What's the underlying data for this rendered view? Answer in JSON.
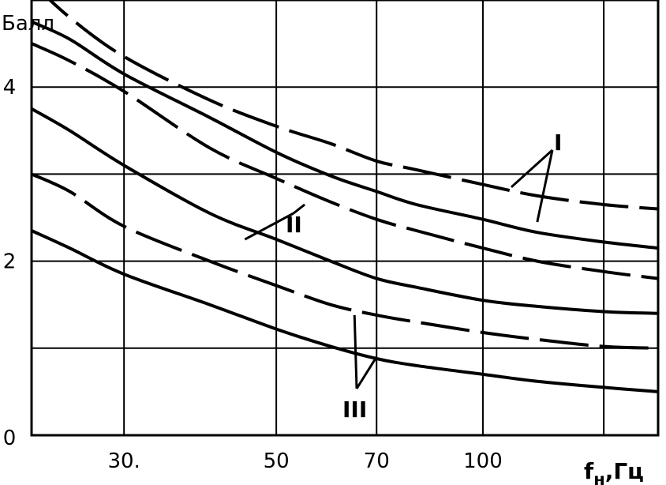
{
  "chart_data": {
    "type": "line",
    "title": "",
    "ylabel": "Балл",
    "xlabel": "f_н, Гц",
    "xlabel_main": "f",
    "xlabel_sub": "н",
    "xlabel_unit": ",Гц",
    "x_scale": "log",
    "xlim": [
      22,
      180
    ],
    "ylim": [
      0,
      5
    ],
    "grid": true,
    "x_ticks": [
      {
        "value": 30,
        "label": "30."
      },
      {
        "value": 50,
        "label": "50"
      },
      {
        "value": 70,
        "label": "70"
      },
      {
        "value": 100,
        "label": "100"
      }
    ],
    "y_ticks": [
      {
        "value": 0,
        "label": "0"
      },
      {
        "value": 2,
        "label": "2"
      },
      {
        "value": 4,
        "label": "4"
      }
    ],
    "x_grid": [
      30,
      50,
      70,
      100,
      150
    ],
    "y_grid": [
      1,
      2,
      3,
      4,
      5
    ],
    "series": [
      {
        "group": "I",
        "style": "dashed",
        "x": [
          22,
          25,
          30,
          40,
          50,
          60,
          70,
          80,
          100,
          120,
          150,
          180
        ],
        "y": [
          5.2,
          4.8,
          4.35,
          3.85,
          3.55,
          3.35,
          3.15,
          3.05,
          2.88,
          2.75,
          2.65,
          2.6
        ]
      },
      {
        "group": "I",
        "style": "solid",
        "x": [
          22,
          25,
          30,
          40,
          50,
          60,
          70,
          80,
          100,
          120,
          150,
          180
        ],
        "y": [
          4.75,
          4.55,
          4.15,
          3.65,
          3.25,
          2.98,
          2.8,
          2.65,
          2.48,
          2.33,
          2.22,
          2.15
        ]
      },
      {
        "group": "II",
        "style": "dashed",
        "x": [
          22,
          25,
          30,
          40,
          50,
          60,
          70,
          80,
          100,
          120,
          150,
          180
        ],
        "y": [
          4.5,
          4.3,
          3.95,
          3.3,
          2.95,
          2.68,
          2.48,
          2.35,
          2.15,
          2.0,
          1.88,
          1.8
        ]
      },
      {
        "group": "II",
        "style": "solid",
        "x": [
          22,
          25,
          30,
          40,
          50,
          60,
          70,
          80,
          100,
          120,
          150,
          180
        ],
        "y": [
          3.75,
          3.5,
          3.1,
          2.55,
          2.25,
          2.0,
          1.8,
          1.7,
          1.55,
          1.48,
          1.42,
          1.4
        ]
      },
      {
        "group": "III",
        "style": "dashed",
        "x": [
          22,
          25,
          30,
          40,
          50,
          60,
          70,
          80,
          100,
          120,
          150,
          180
        ],
        "y": [
          3.0,
          2.8,
          2.4,
          2.0,
          1.72,
          1.5,
          1.38,
          1.3,
          1.18,
          1.1,
          1.02,
          1.0
        ]
      },
      {
        "group": "III",
        "style": "solid",
        "x": [
          22,
          25,
          30,
          40,
          50,
          60,
          70,
          80,
          100,
          120,
          150,
          180
        ],
        "y": [
          2.35,
          2.15,
          1.85,
          1.5,
          1.22,
          1.02,
          0.88,
          0.8,
          0.7,
          0.62,
          0.55,
          0.5
        ]
      }
    ],
    "annotations": [
      {
        "label": "I",
        "group": "I"
      },
      {
        "label": "II",
        "group": "II"
      },
      {
        "label": "III",
        "group": "III"
      }
    ]
  }
}
